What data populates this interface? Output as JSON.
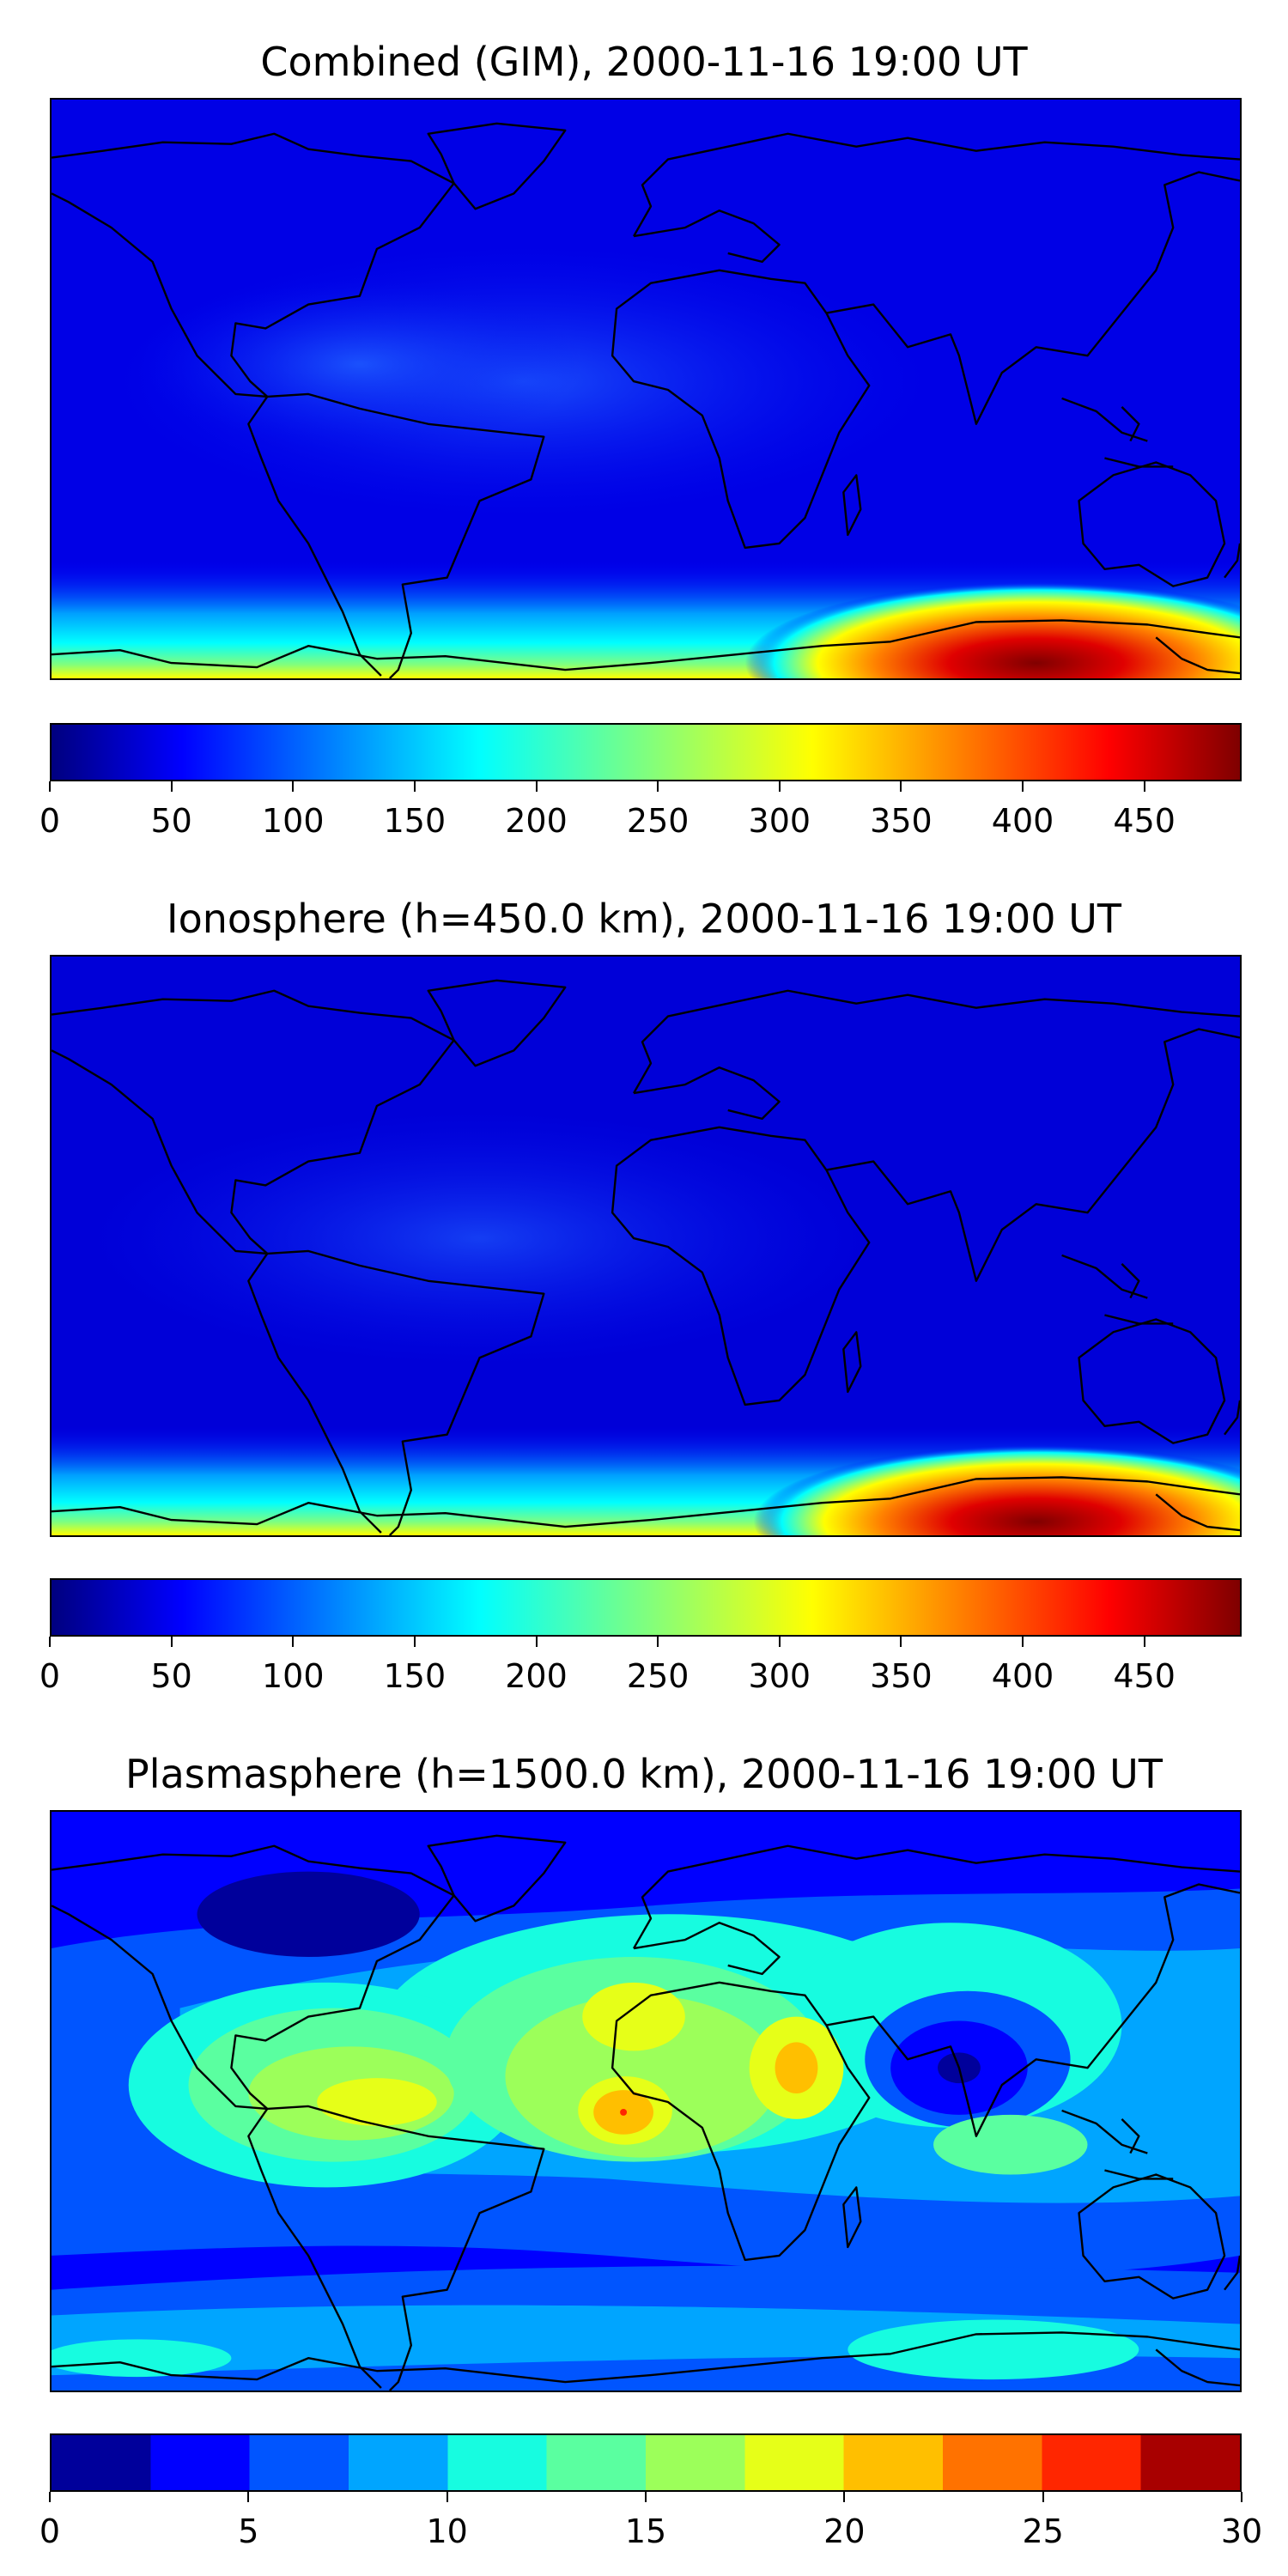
{
  "panels": [
    {
      "title": "Combined (GIM), 2000-11-16 19:00 UT",
      "colorbar": {
        "type": "continuous",
        "min": 0,
        "max": 490,
        "ticks": [
          "0",
          "50",
          "100",
          "150",
          "200",
          "250",
          "300",
          "350",
          "400",
          "450"
        ],
        "tick_values": [
          0,
          50,
          100,
          150,
          200,
          250,
          300,
          350,
          400,
          450
        ]
      }
    },
    {
      "title": "Ionosphere  (h=450.0 km), 2000-11-16 19:00 UT",
      "colorbar": {
        "type": "continuous",
        "min": 0,
        "max": 490,
        "ticks": [
          "0",
          "50",
          "100",
          "150",
          "200",
          "250",
          "300",
          "350",
          "400",
          "450"
        ],
        "tick_values": [
          0,
          50,
          100,
          150,
          200,
          250,
          300,
          350,
          400,
          450
        ]
      }
    },
    {
      "title": "Plasmasphere (h=1500.0 km), 2000-11-16 19:00 UT",
      "colorbar": {
        "type": "discrete",
        "min": 0,
        "max": 30,
        "ticks": [
          "0",
          "5",
          "10",
          "15",
          "20",
          "25",
          "30"
        ],
        "tick_values": [
          0,
          5,
          10,
          15,
          20,
          25,
          30
        ],
        "levels": [
          0,
          2.5,
          5,
          7.5,
          10,
          12.5,
          15,
          17.5,
          20,
          22.5,
          25,
          27.5,
          30
        ]
      }
    }
  ],
  "colormap": "jet",
  "colors": {
    "jet_stops": [
      "#00007f",
      "#0000ff",
      "#007fff",
      "#00ffff",
      "#7fff7f",
      "#ffff00",
      "#ff7f00",
      "#ff0000",
      "#7f0000"
    ],
    "discrete_levels": [
      "#00009b",
      "#0000ff",
      "#0055ff",
      "#00a5ff",
      "#17fce0",
      "#5affa0",
      "#9cff5a",
      "#e6ff18",
      "#ffbf00",
      "#ff7200",
      "#ff2600",
      "#a80000"
    ],
    "coastline": "#000000"
  }
}
